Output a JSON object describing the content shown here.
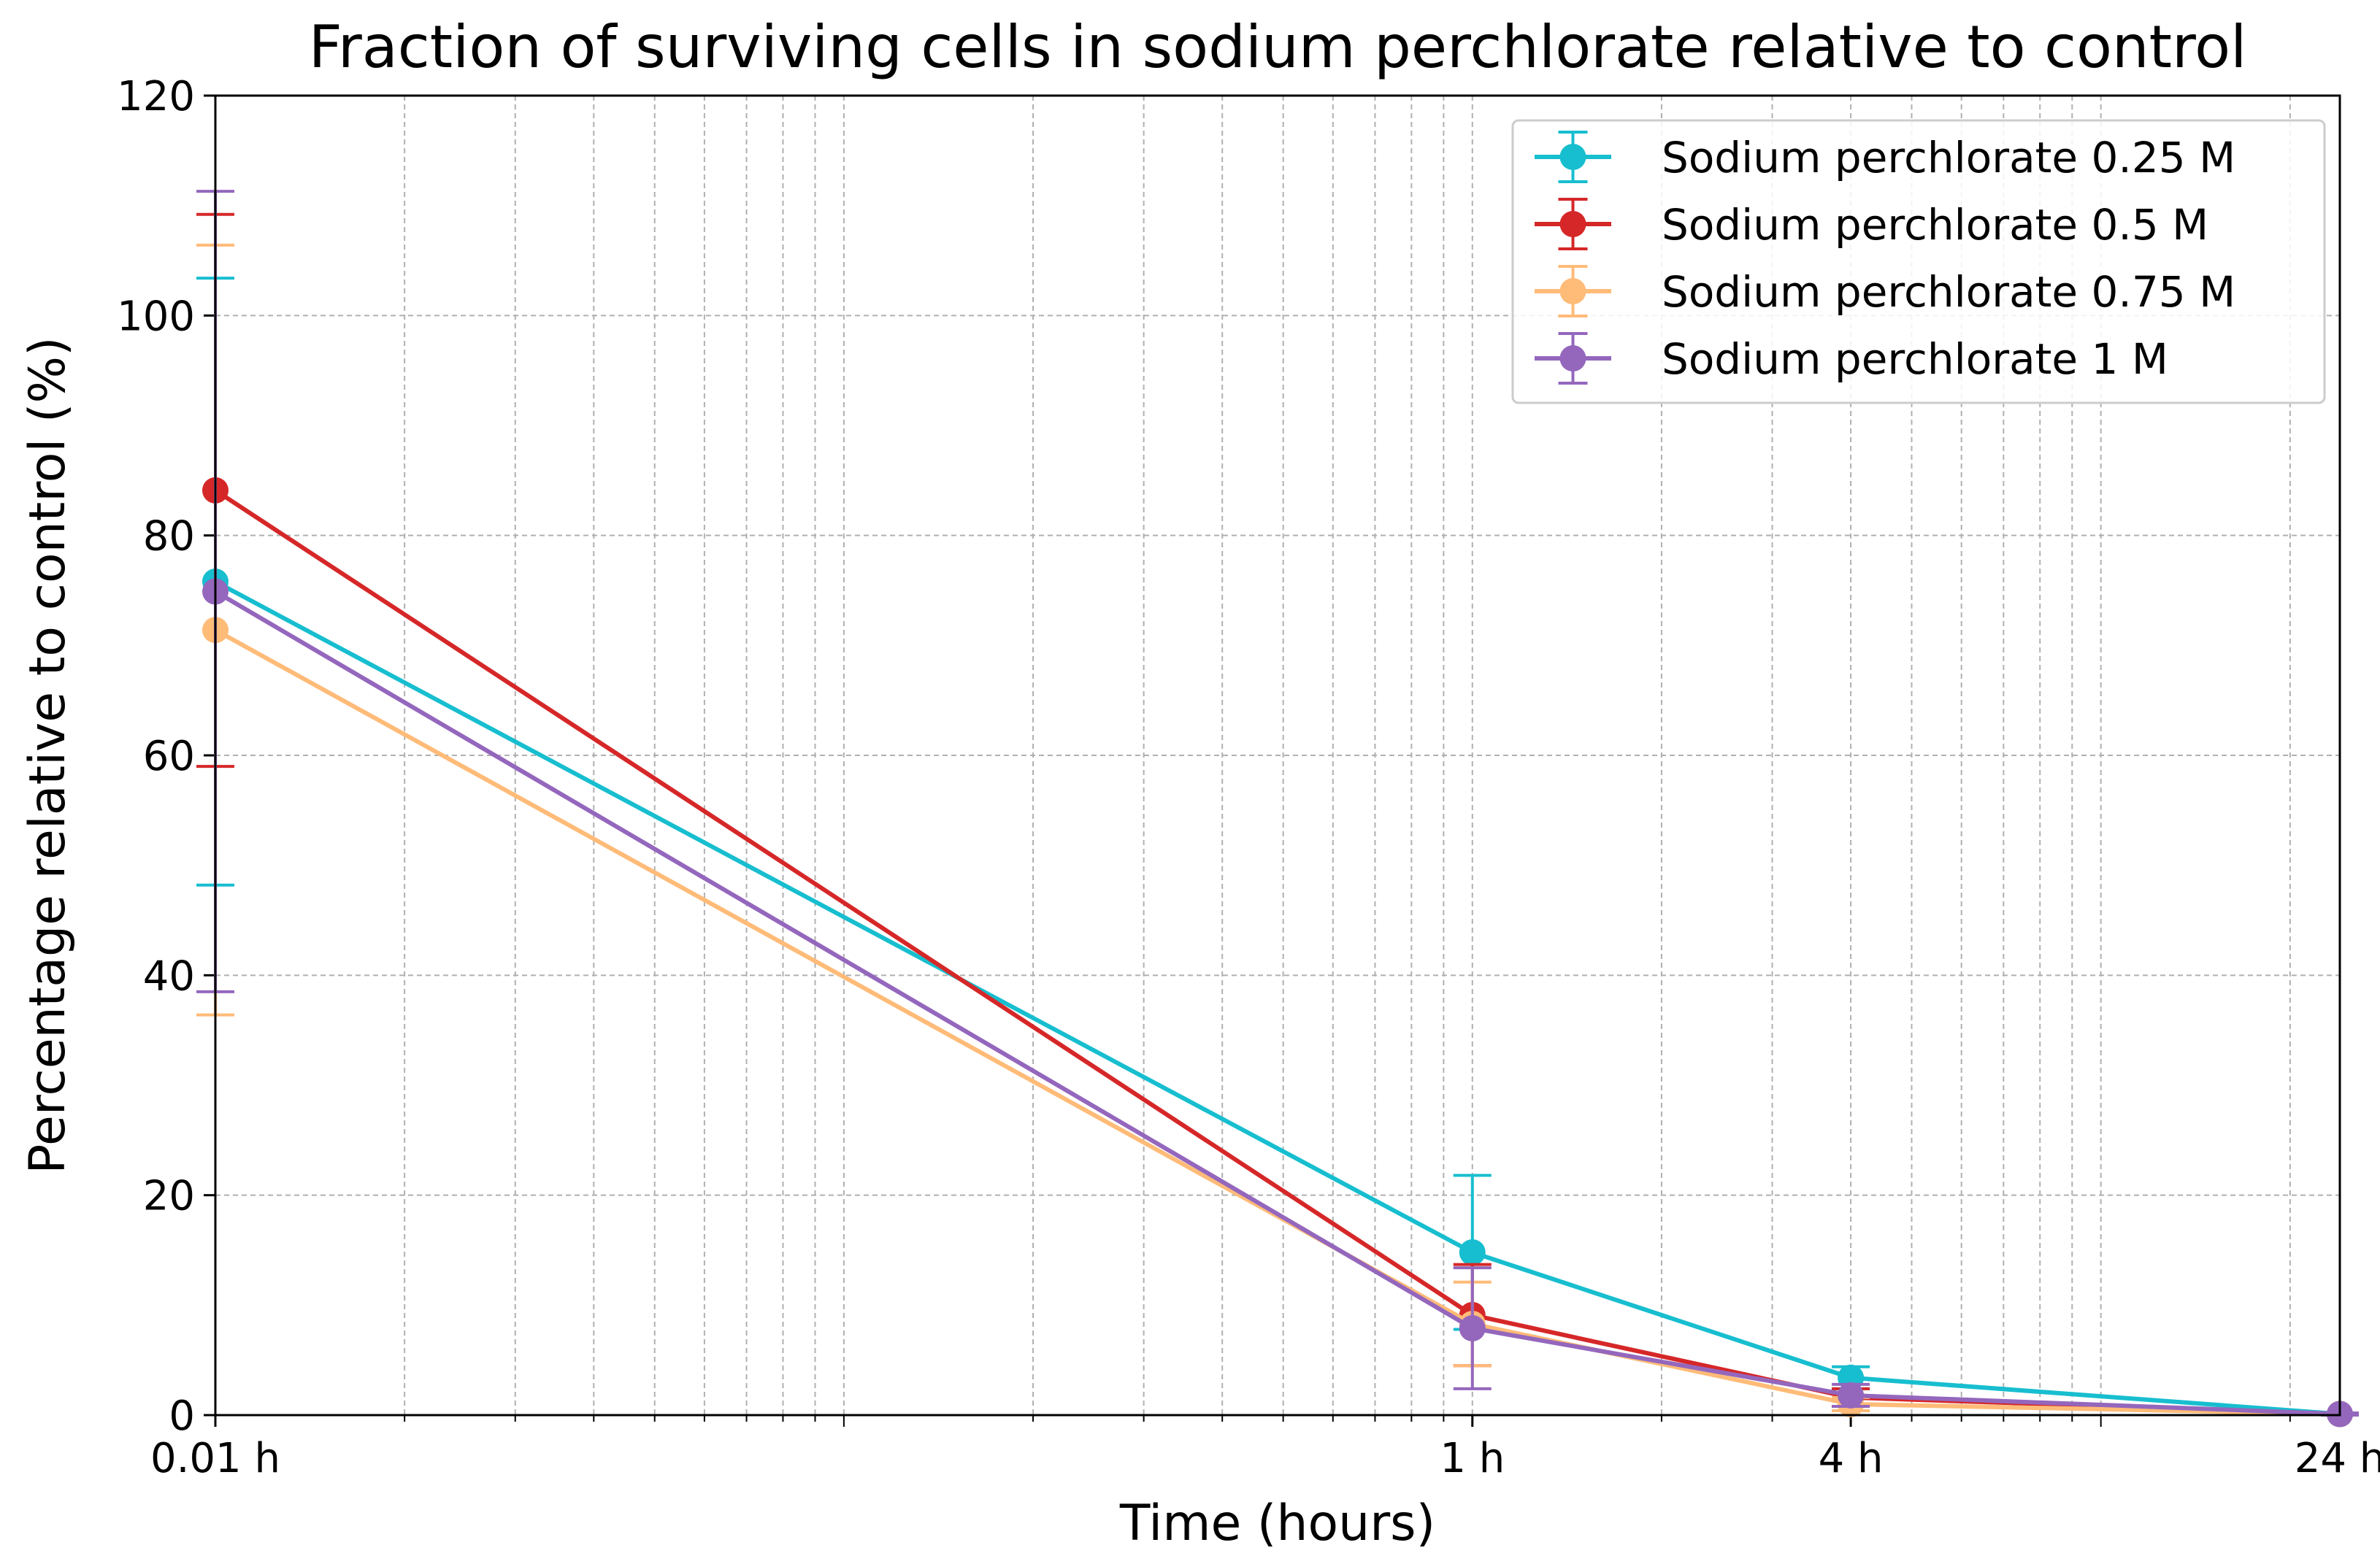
{
  "chart_data": {
    "type": "line",
    "title": "Fraction of surviving cells in sodium perchlorate relative to control",
    "xlabel": "Time (hours)",
    "ylabel": "Percentage relative to control (%)",
    "x_scale": "log",
    "x": [
      0.01,
      1,
      4,
      24
    ],
    "x_tick_labels": [
      "0.01 h",
      "1 h",
      "4 h",
      "24 h"
    ],
    "xlim": [
      0.01,
      24
    ],
    "ylim": [
      0,
      120
    ],
    "y_ticks": [
      0,
      20,
      40,
      60,
      80,
      100,
      120
    ],
    "grid": true,
    "legend_position": "top-right",
    "series": [
      {
        "name": "Sodium perchlorate 0.25 M",
        "color": "#17becf",
        "values": [
          75.8,
          14.8,
          3.4,
          0.1
        ],
        "errors": [
          27.6,
          7.0,
          1.0,
          0.1
        ]
      },
      {
        "name": "Sodium perchlorate 0.5 M",
        "color": "#d62728",
        "values": [
          84.1,
          9.1,
          1.6,
          0.1
        ],
        "errors": [
          25.1,
          4.6,
          0.8,
          0.1
        ]
      },
      {
        "name": "Sodium perchlorate 0.75 M",
        "color": "#ffbb78",
        "values": [
          71.4,
          8.3,
          1.0,
          0.1
        ],
        "errors": [
          35.0,
          3.8,
          0.6,
          0.1
        ]
      },
      {
        "name": "Sodium perchlorate 1 M",
        "color": "#9467bd",
        "values": [
          74.9,
          7.9,
          1.8,
          0.1
        ],
        "errors": [
          36.4,
          5.5,
          1.0,
          0.1
        ]
      }
    ]
  }
}
